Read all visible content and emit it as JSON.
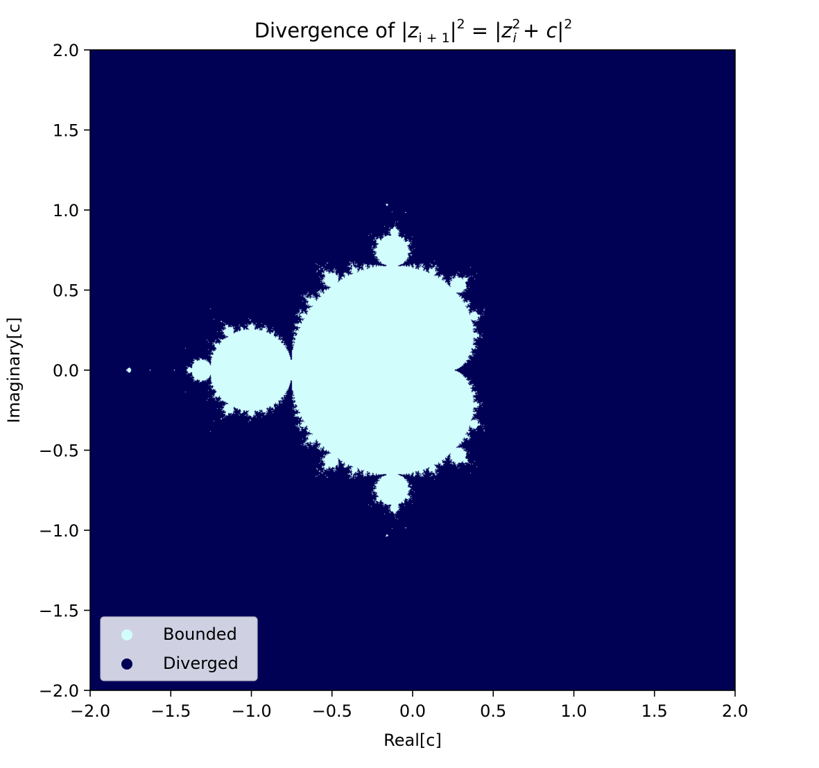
{
  "chart_data": {
    "type": "heatmap",
    "title": {
      "prefix": "Divergence of ",
      "lhs_var": "z",
      "lhs_sub": "i + 1",
      "exp": "2",
      "equals": " = ",
      "rhs_var": "z",
      "rhs_sub": "i",
      "rhs_sup": "2",
      "plus": " + ",
      "c": "c"
    },
    "xlabel": "Real[c]",
    "ylabel": "Imaginary[c]",
    "xlim": [
      -2.0,
      2.0
    ],
    "ylim": [
      -2.0,
      2.0
    ],
    "xticks": [
      {
        "value": -2.0,
        "label": "−2.0"
      },
      {
        "value": -1.5,
        "label": "−1.5"
      },
      {
        "value": -1.0,
        "label": "−1.0"
      },
      {
        "value": -0.5,
        "label": "−0.5"
      },
      {
        "value": 0.0,
        "label": "0.0"
      },
      {
        "value": 0.5,
        "label": "0.5"
      },
      {
        "value": 1.0,
        "label": "1.0"
      },
      {
        "value": 1.5,
        "label": "1.5"
      },
      {
        "value": 2.0,
        "label": "2.0"
      }
    ],
    "yticks": [
      {
        "value": 2.0,
        "label": "2.0"
      },
      {
        "value": 1.5,
        "label": "1.5"
      },
      {
        "value": 1.0,
        "label": "1.0"
      },
      {
        "value": 0.5,
        "label": "0.5"
      },
      {
        "value": 0.0,
        "label": "0.0"
      },
      {
        "value": -0.5,
        "label": "−0.5"
      },
      {
        "value": -1.0,
        "label": "−1.0"
      },
      {
        "value": -1.5,
        "label": "−1.5"
      },
      {
        "value": -2.0,
        "label": "−2.0"
      }
    ],
    "series": [
      {
        "name": "Bounded",
        "color": "#d1fdfd"
      },
      {
        "name": "Diverged",
        "color": "#000055"
      }
    ],
    "max_iterations": 50,
    "escape_radius_squared": 4,
    "legend_position": "lower-left",
    "grid": false
  }
}
